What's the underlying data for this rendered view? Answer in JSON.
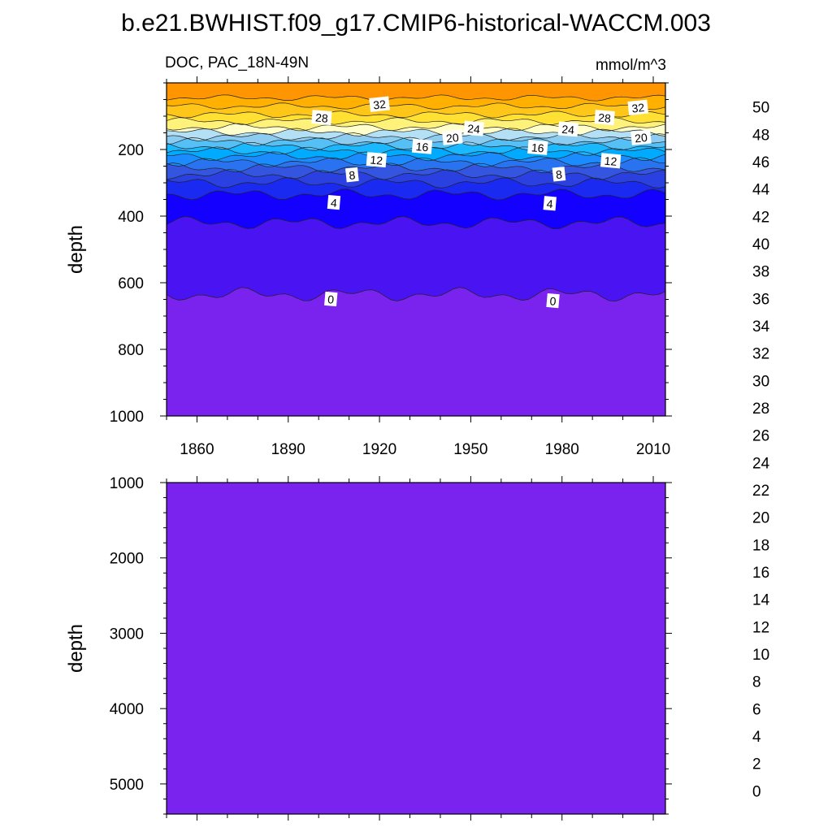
{
  "figure": {
    "title": "b.e21.BWHIST.f09_g17.CMIP6-historical-WACCM.003",
    "left_subtitle": "DOC, PAC_18N-49N",
    "right_subtitle": "mmol/m^3"
  },
  "colorbar": {
    "labels": [
      "50",
      "48",
      "46",
      "44",
      "42",
      "40",
      "38",
      "36",
      "34",
      "32",
      "30",
      "28",
      "26",
      "24",
      "22",
      "20",
      "18",
      "16",
      "14",
      "12",
      "10",
      "8",
      "6",
      "4",
      "2",
      "0"
    ],
    "colors_top_to_bottom": [
      "#ffb3b3",
      "#e35252",
      "#cc1111",
      "#dd0000",
      "#ff0000",
      "#ff2a00",
      "#ff5500",
      "#ff7700",
      "#ff9500",
      "#ffb000",
      "#ffc61a",
      "#ffe033",
      "#fff27a",
      "#ffffcc",
      "#b3e0f5",
      "#8cccf0",
      "#55c0f5",
      "#1ab8ff",
      "#00aaff",
      "#1a8cff",
      "#2a73f0",
      "#3355e0",
      "#2a40e0",
      "#1a2af0",
      "#1400ff",
      "#4a14f2",
      "#7a22ee"
    ]
  },
  "chart_data": [
    {
      "type": "contour",
      "panel": "upper",
      "variable": "DOC",
      "region": "PAC_18N-49N",
      "units": "mmol/m^3",
      "xlabel": "",
      "ylabel": "depth",
      "xlim": [
        1850,
        2014
      ],
      "ylim": [
        1000,
        0
      ],
      "x_ticks": [
        1860,
        1890,
        1920,
        1950,
        1980,
        2010
      ],
      "y_ticks": [
        200,
        400,
        600,
        800,
        1000
      ],
      "contour_levels": [
        0,
        2,
        4,
        6,
        8,
        10,
        12,
        14,
        16,
        18,
        20,
        22,
        24,
        26,
        28,
        30,
        32,
        34
      ],
      "contour_depths": [
        {
          "level": 34,
          "depth": 45
        },
        {
          "level": 32,
          "depth": 70
        },
        {
          "level": 30,
          "depth": 95
        },
        {
          "level": 28,
          "depth": 115
        },
        {
          "level": 26,
          "depth": 133
        },
        {
          "level": 24,
          "depth": 148
        },
        {
          "level": 22,
          "depth": 162
        },
        {
          "level": 20,
          "depth": 176
        },
        {
          "level": 18,
          "depth": 190
        },
        {
          "level": 16,
          "depth": 205
        },
        {
          "level": 14,
          "depth": 220
        },
        {
          "level": 12,
          "depth": 238
        },
        {
          "level": 10,
          "depth": 255
        },
        {
          "level": 8,
          "depth": 275
        },
        {
          "level": 6,
          "depth": 300
        },
        {
          "level": 4,
          "depth": 335
        },
        {
          "level": 2,
          "depth": 420
        },
        {
          "level": 0,
          "depth": 635
        }
      ],
      "contour_labels": [
        {
          "text": "32",
          "year": 1920,
          "depth": 65
        },
        {
          "text": "28",
          "year": 1901,
          "depth": 105
        },
        {
          "text": "24",
          "year": 1951,
          "depth": 138
        },
        {
          "text": "20",
          "year": 1944,
          "depth": 165
        },
        {
          "text": "16",
          "year": 1934,
          "depth": 192
        },
        {
          "text": "12",
          "year": 1919,
          "depth": 232
        },
        {
          "text": "8",
          "year": 1911,
          "depth": 277
        },
        {
          "text": "4",
          "year": 1905,
          "depth": 360
        },
        {
          "text": "0",
          "year": 1904,
          "depth": 650
        },
        {
          "text": "32",
          "year": 2005,
          "depth": 75
        },
        {
          "text": "28",
          "year": 1994,
          "depth": 105
        },
        {
          "text": "24",
          "year": 1982,
          "depth": 140
        },
        {
          "text": "20",
          "year": 2006,
          "depth": 165
        },
        {
          "text": "16",
          "year": 1972,
          "depth": 195
        },
        {
          "text": "12",
          "year": 1996,
          "depth": 235
        },
        {
          "text": "8",
          "year": 1979,
          "depth": 275
        },
        {
          "text": "4",
          "year": 1976,
          "depth": 363
        },
        {
          "text": "0",
          "year": 1977,
          "depth": 655
        }
      ]
    },
    {
      "type": "contour",
      "panel": "lower",
      "variable": "DOC",
      "units": "mmol/m^3",
      "xlabel": "",
      "ylabel": "depth",
      "xlim": [
        1850,
        2014
      ],
      "ylim": [
        5400,
        1000
      ],
      "y_ticks": [
        1000,
        2000,
        3000,
        4000,
        5000
      ],
      "uniform_value": 0
    }
  ]
}
